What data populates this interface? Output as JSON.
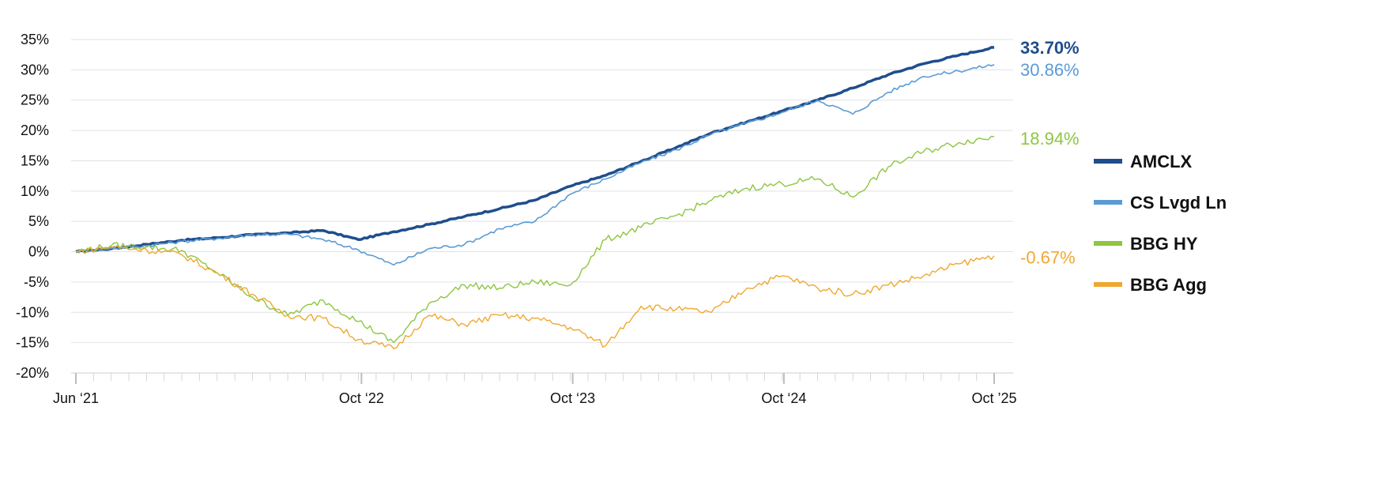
{
  "chart_data": {
    "type": "line",
    "x_ticks": [
      "Jun ‘21",
      "Oct ‘22",
      "Oct ‘23",
      "Oct ‘24",
      "Oct ’25"
    ],
    "x_tick_fracs": [
      0.0,
      0.311,
      0.541,
      0.771,
      1.0
    ],
    "y_ticks": [
      "35%",
      "30%",
      "25%",
      "20%",
      "15%",
      "10%",
      "5%",
      "0%",
      "-5%",
      "-10%",
      "-15%",
      "-20%"
    ],
    "y_tick_values": [
      35,
      30,
      25,
      20,
      15,
      10,
      5,
      0,
      -5,
      -10,
      -15,
      -20
    ],
    "ylim": [
      -20,
      35
    ],
    "grid": "horizontal",
    "legend_position": "right",
    "x": [
      "2021-06",
      "2021-08",
      "2021-10",
      "2021-12",
      "2022-02",
      "2022-04",
      "2022-06",
      "2022-08",
      "2022-10",
      "2022-12",
      "2023-02",
      "2023-04",
      "2023-06",
      "2023-08",
      "2023-10",
      "2023-12",
      "2024-02",
      "2024-04",
      "2024-06",
      "2024-08",
      "2024-10",
      "2024-12",
      "2025-02",
      "2025-04",
      "2025-06",
      "2025-08",
      "2025-10"
    ],
    "series": [
      {
        "name": "AMCLX",
        "color": "#1f4e8c",
        "end_label": "33.70%",
        "values": [
          0,
          0.5,
          1.2,
          1.9,
          2.3,
          2.8,
          3.1,
          3.5,
          2.0,
          3.3,
          4.5,
          5.8,
          7.1,
          8.5,
          10.8,
          12.6,
          14.9,
          17.2,
          19.6,
          21.4,
          23.2,
          25.0,
          27.0,
          29.2,
          31.0,
          32.4,
          33.7
        ]
      },
      {
        "name": "CS Lvgd Ln",
        "color": "#5b9bd5",
        "end_label": "30.86%",
        "values": [
          0,
          0.6,
          1.0,
          1.7,
          2.2,
          2.8,
          2.9,
          2.0,
          0.3,
          -2.2,
          0.5,
          1.2,
          3.8,
          5.0,
          9.5,
          12.0,
          14.7,
          16.8,
          19.4,
          21.2,
          23.0,
          25.0,
          22.7,
          26.3,
          28.9,
          29.8,
          30.86
        ]
      },
      {
        "name": "BBG HY",
        "color": "#8dc63f",
        "end_label": "18.94%",
        "values": [
          0,
          1.0,
          0.8,
          0.2,
          -3.5,
          -7.5,
          -10.5,
          -8.0,
          -11.5,
          -15.0,
          -8.5,
          -5.5,
          -6.0,
          -5.0,
          -5.5,
          2.0,
          4.0,
          6.0,
          8.5,
          10.5,
          11.2,
          12.0,
          9.0,
          14.0,
          16.5,
          18.0,
          18.94
        ]
      },
      {
        "name": "BBG Agg",
        "color": "#f0a830",
        "end_label": "-0.67%",
        "values": [
          0,
          0.8,
          0.3,
          -0.5,
          -3.5,
          -7.0,
          -10.5,
          -11.0,
          -14.5,
          -16.0,
          -10.5,
          -12.0,
          -10.5,
          -11.0,
          -12.5,
          -15.5,
          -9.0,
          -9.5,
          -10.0,
          -6.0,
          -4.0,
          -6.0,
          -7.0,
          -5.5,
          -4.0,
          -2.0,
          -0.67
        ]
      }
    ]
  }
}
